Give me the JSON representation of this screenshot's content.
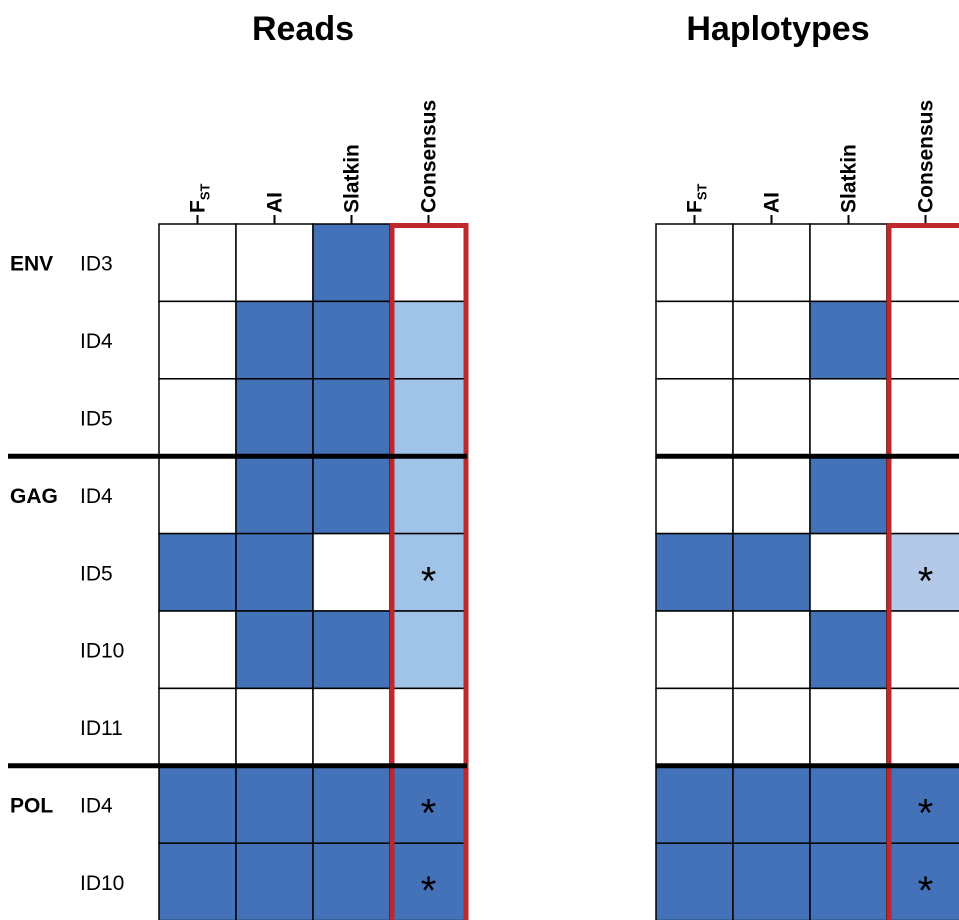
{
  "colors": {
    "dark": "#4472b8",
    "light": "#a0c4e8",
    "lighter": "#b4c8e8",
    "none": "#ffffff",
    "highlight": "#c0272d",
    "grid": "#000000"
  },
  "chart_data": {
    "type": "heatmap",
    "columns": [
      {
        "label": "F",
        "sub": "ST"
      },
      {
        "label": "AI",
        "sub": ""
      },
      {
        "label": "Slatkin",
        "sub": ""
      },
      {
        "label": "Consensus",
        "sub": ""
      }
    ],
    "groups": [
      {
        "gene": "ENV",
        "rows": [
          "ID3",
          "ID4",
          "ID5"
        ]
      },
      {
        "gene": "GAG",
        "rows": [
          "ID4",
          "ID5",
          "ID10",
          "ID11"
        ]
      },
      {
        "gene": "POL",
        "rows": [
          "ID4",
          "ID10"
        ]
      }
    ],
    "panels": [
      {
        "title": "Reads",
        "cells": [
          [
            "none",
            "none",
            "dark",
            "none"
          ],
          [
            "none",
            "dark",
            "dark",
            "light"
          ],
          [
            "none",
            "dark",
            "dark",
            "light"
          ],
          [
            "none",
            "dark",
            "dark",
            "light"
          ],
          [
            "dark",
            "dark",
            "none",
            "light"
          ],
          [
            "none",
            "dark",
            "dark",
            "light"
          ],
          [
            "none",
            "none",
            "none",
            "none"
          ],
          [
            "dark",
            "dark",
            "dark",
            "dark"
          ],
          [
            "dark",
            "dark",
            "dark",
            "dark"
          ]
        ],
        "stars": [
          4,
          7,
          8
        ]
      },
      {
        "title": "Haplotypes",
        "cells": [
          [
            "none",
            "none",
            "none",
            "none"
          ],
          [
            "none",
            "none",
            "dark",
            "none"
          ],
          [
            "none",
            "none",
            "none",
            "none"
          ],
          [
            "none",
            "none",
            "dark",
            "none"
          ],
          [
            "dark",
            "dark",
            "none",
            "lighter"
          ],
          [
            "none",
            "none",
            "dark",
            "none"
          ],
          [
            "none",
            "none",
            "none",
            "none"
          ],
          [
            "dark",
            "dark",
            "dark",
            "dark"
          ],
          [
            "dark",
            "dark",
            "dark",
            "dark"
          ]
        ],
        "stars": [
          4,
          7,
          8
        ]
      }
    ],
    "star_symbol": "*"
  }
}
